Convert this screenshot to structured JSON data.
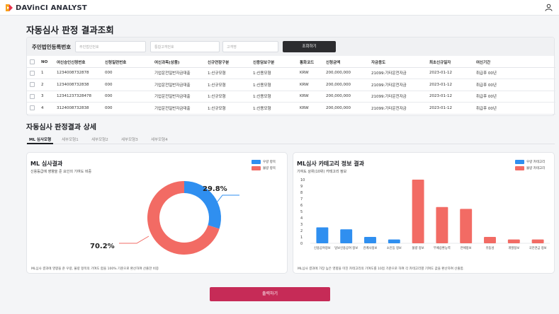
{
  "app": {
    "logo_text": "DAVinCI ANALYST"
  },
  "page_title": "자동심사 판정 결과조회",
  "search": {
    "label": "주민법인등록번호",
    "placeholder_1": "주민법인번호",
    "placeholder_2": "통합고객번호",
    "placeholder_3": "고객명",
    "button": "조회하기"
  },
  "table": {
    "headers": [
      "NO",
      "여신승인신청번호",
      "신청일련번호",
      "여신과목(상품)",
      "신규연장구분",
      "신용담보구분",
      "통화코드",
      "신청금액",
      "자금용도",
      "최초신규일자",
      "여신기간"
    ],
    "rows": [
      [
        "1",
        "1234008732878",
        "000",
        "기업운전일반자금대출",
        "1:신규모형",
        "1:신용모형",
        "KRW",
        "200,000,000",
        "21099:기타운전자금",
        "2023-01-12",
        "취급후 00년"
      ],
      [
        "2",
        "1234008732838",
        "000",
        "기업운전일반자금대출",
        "1:신규모형",
        "1:신용모형",
        "KRW",
        "200,000,000",
        "21099:기타운전자금",
        "2023-01-12",
        "취급후 00년"
      ],
      [
        "3",
        "12341237328478",
        "000",
        "기업운전일반자금대출",
        "1:신규모형",
        "1:신용모형",
        "KRW",
        "200,000,000",
        "21099:기타운전자금",
        "2023-01-12",
        "취급후 00년"
      ],
      [
        "4",
        "3124008732838",
        "000",
        "기업운전일반자금대출",
        "1:신규모형",
        "1:신용모형",
        "KRW",
        "200,000,000",
        "21099:기타운전자금",
        "2023-01-12",
        "취급후 00년"
      ]
    ]
  },
  "detail": {
    "title": "자동심사 판정결과 상세",
    "tabs": [
      "ML 심사모형",
      "세부모형1",
      "세부모형2",
      "세부모형3",
      "세부모형4"
    ]
  },
  "ml_panel": {
    "title": "ML 심사결과",
    "subtitle": "신용등급에 영향을 준 요인의 기여도 비중",
    "footnote": "ML심사 결과에 영향을 준 우량, 불량 항목의 기여도 합을 100% 기준으로 환산하여 산출한 비중"
  },
  "cat_panel": {
    "title": "ML심사 카테고리 정보 결과",
    "subtitle": "기여도 상위(10위) 카테고리 정보",
    "footnote": "ML심사 결과에 가장 높은 영향을 미친 카테고리의 기여도를 10점 기준으로 하여 각 카테고리별 기여도 값을 환산하여 산출함."
  },
  "print_button": "출력하기",
  "colors": {
    "good": "#2f8ff0",
    "bad": "#f26b64",
    "accent": "#c62b57"
  },
  "icons": {
    "user": "user-icon",
    "logo": "logo-icon"
  },
  "chart_data": [
    {
      "type": "pie",
      "title": "ML 심사결과",
      "subtitle": "신용등급에 영향을 준 요인의 기여도 비중",
      "categories": [
        "우량 항목",
        "불량 항목"
      ],
      "values": [
        29.8,
        70.2
      ],
      "labels": [
        "29.8%",
        "70.2%"
      ],
      "legend": "top-right"
    },
    {
      "type": "bar",
      "title": "ML심사 카테고리 정보 결과",
      "subtitle": "기여도 상위(10위) 카테고리 정보",
      "categories": [
        "신용공여정보",
        "담보신용공여 정보",
        "관계사정보",
        "소인등 정보",
        "불량 정보",
        "부채상환능력",
        "연체정보",
        "유동성",
        "개발정보",
        "국민연금 정보"
      ],
      "values": [
        2.5,
        2.2,
        1.0,
        0.6,
        10.0,
        5.7,
        5.4,
        1.0,
        0.6,
        0.6
      ],
      "series_group": [
        "우량 카테고리",
        "우량 카테고리",
        "우량 카테고리",
        "우량 카테고리",
        "불량 카테고리",
        "불량 카테고리",
        "불량 카테고리",
        "불량 카테고리",
        "불량 카테고리",
        "불량 카테고리"
      ],
      "legend_entries": [
        "우량 카테고리",
        "불량 카테고리"
      ],
      "yticks": [
        "0",
        "1",
        "2",
        "3",
        "4",
        "5",
        "6",
        "7",
        "8",
        "9",
        "10"
      ],
      "ylim": [
        0,
        10
      ],
      "legend": "top-right"
    }
  ]
}
